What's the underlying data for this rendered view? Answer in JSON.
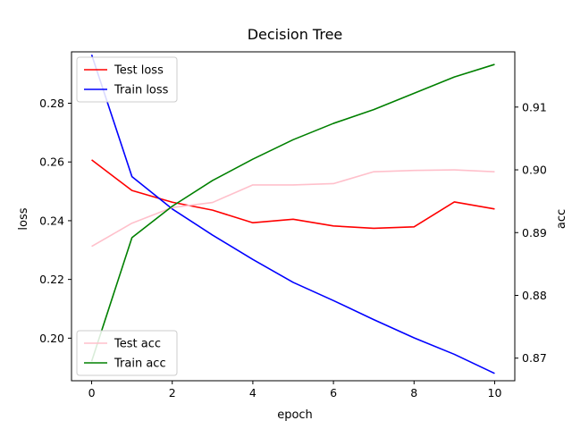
{
  "chart_data": {
    "type": "line",
    "title": "Decision Tree",
    "xlabel": "epoch",
    "ylabel_left": "loss",
    "ylabel_right": "acc",
    "xlim": [
      -0.5,
      10.5
    ],
    "ylim_left": [
      0.1855,
      0.2975
    ],
    "ylim_right": [
      0.8664,
      0.9188
    ],
    "x_ticks": [
      0,
      2,
      4,
      6,
      8,
      10
    ],
    "x_tick_labels": [
      "0",
      "2",
      "4",
      "6",
      "8",
      "10"
    ],
    "y_left_ticks": [
      0.2,
      0.22,
      0.24,
      0.26,
      0.28
    ],
    "y_left_tick_labels": [
      "0.20",
      "0.22",
      "0.24",
      "0.26",
      "0.28"
    ],
    "y_right_ticks": [
      0.87,
      0.88,
      0.89,
      0.9,
      0.91
    ],
    "y_right_tick_labels": [
      "0.87",
      "0.88",
      "0.89",
      "0.90",
      "0.91"
    ],
    "grid": false,
    "x": [
      0,
      1,
      2,
      3,
      4,
      5,
      6,
      7,
      8,
      9,
      10
    ],
    "series": [
      {
        "name": "Test loss",
        "axis": "left",
        "color": "#ff0000",
        "values": [
          0.2607,
          0.2503,
          0.2463,
          0.2436,
          0.2393,
          0.2405,
          0.2382,
          0.2374,
          0.2379,
          0.2464,
          0.244
        ]
      },
      {
        "name": "Train loss",
        "axis": "left",
        "color": "#0000ff",
        "values": [
          0.2965,
          0.255,
          0.244,
          0.2351,
          0.2268,
          0.219,
          0.2128,
          0.2063,
          0.2001,
          0.1945,
          0.188
        ]
      },
      {
        "name": "Test acc",
        "axis": "right",
        "color": "#ffc0cb",
        "values": [
          0.8878,
          0.8915,
          0.894,
          0.8948,
          0.8976,
          0.8976,
          0.8978,
          0.8997,
          0.8999,
          0.9,
          0.8997
        ]
      },
      {
        "name": "Train acc",
        "axis": "right",
        "color": "#008000",
        "values": [
          0.8695,
          0.8892,
          0.8942,
          0.8983,
          0.9017,
          0.9048,
          0.9074,
          0.9096,
          0.9122,
          0.9148,
          0.9168
        ]
      }
    ],
    "legends": [
      {
        "placement": "upper-left",
        "entries": [
          "Test loss",
          "Train loss"
        ]
      },
      {
        "placement": "lower-left",
        "entries": [
          "Test acc",
          "Train acc"
        ]
      }
    ]
  }
}
